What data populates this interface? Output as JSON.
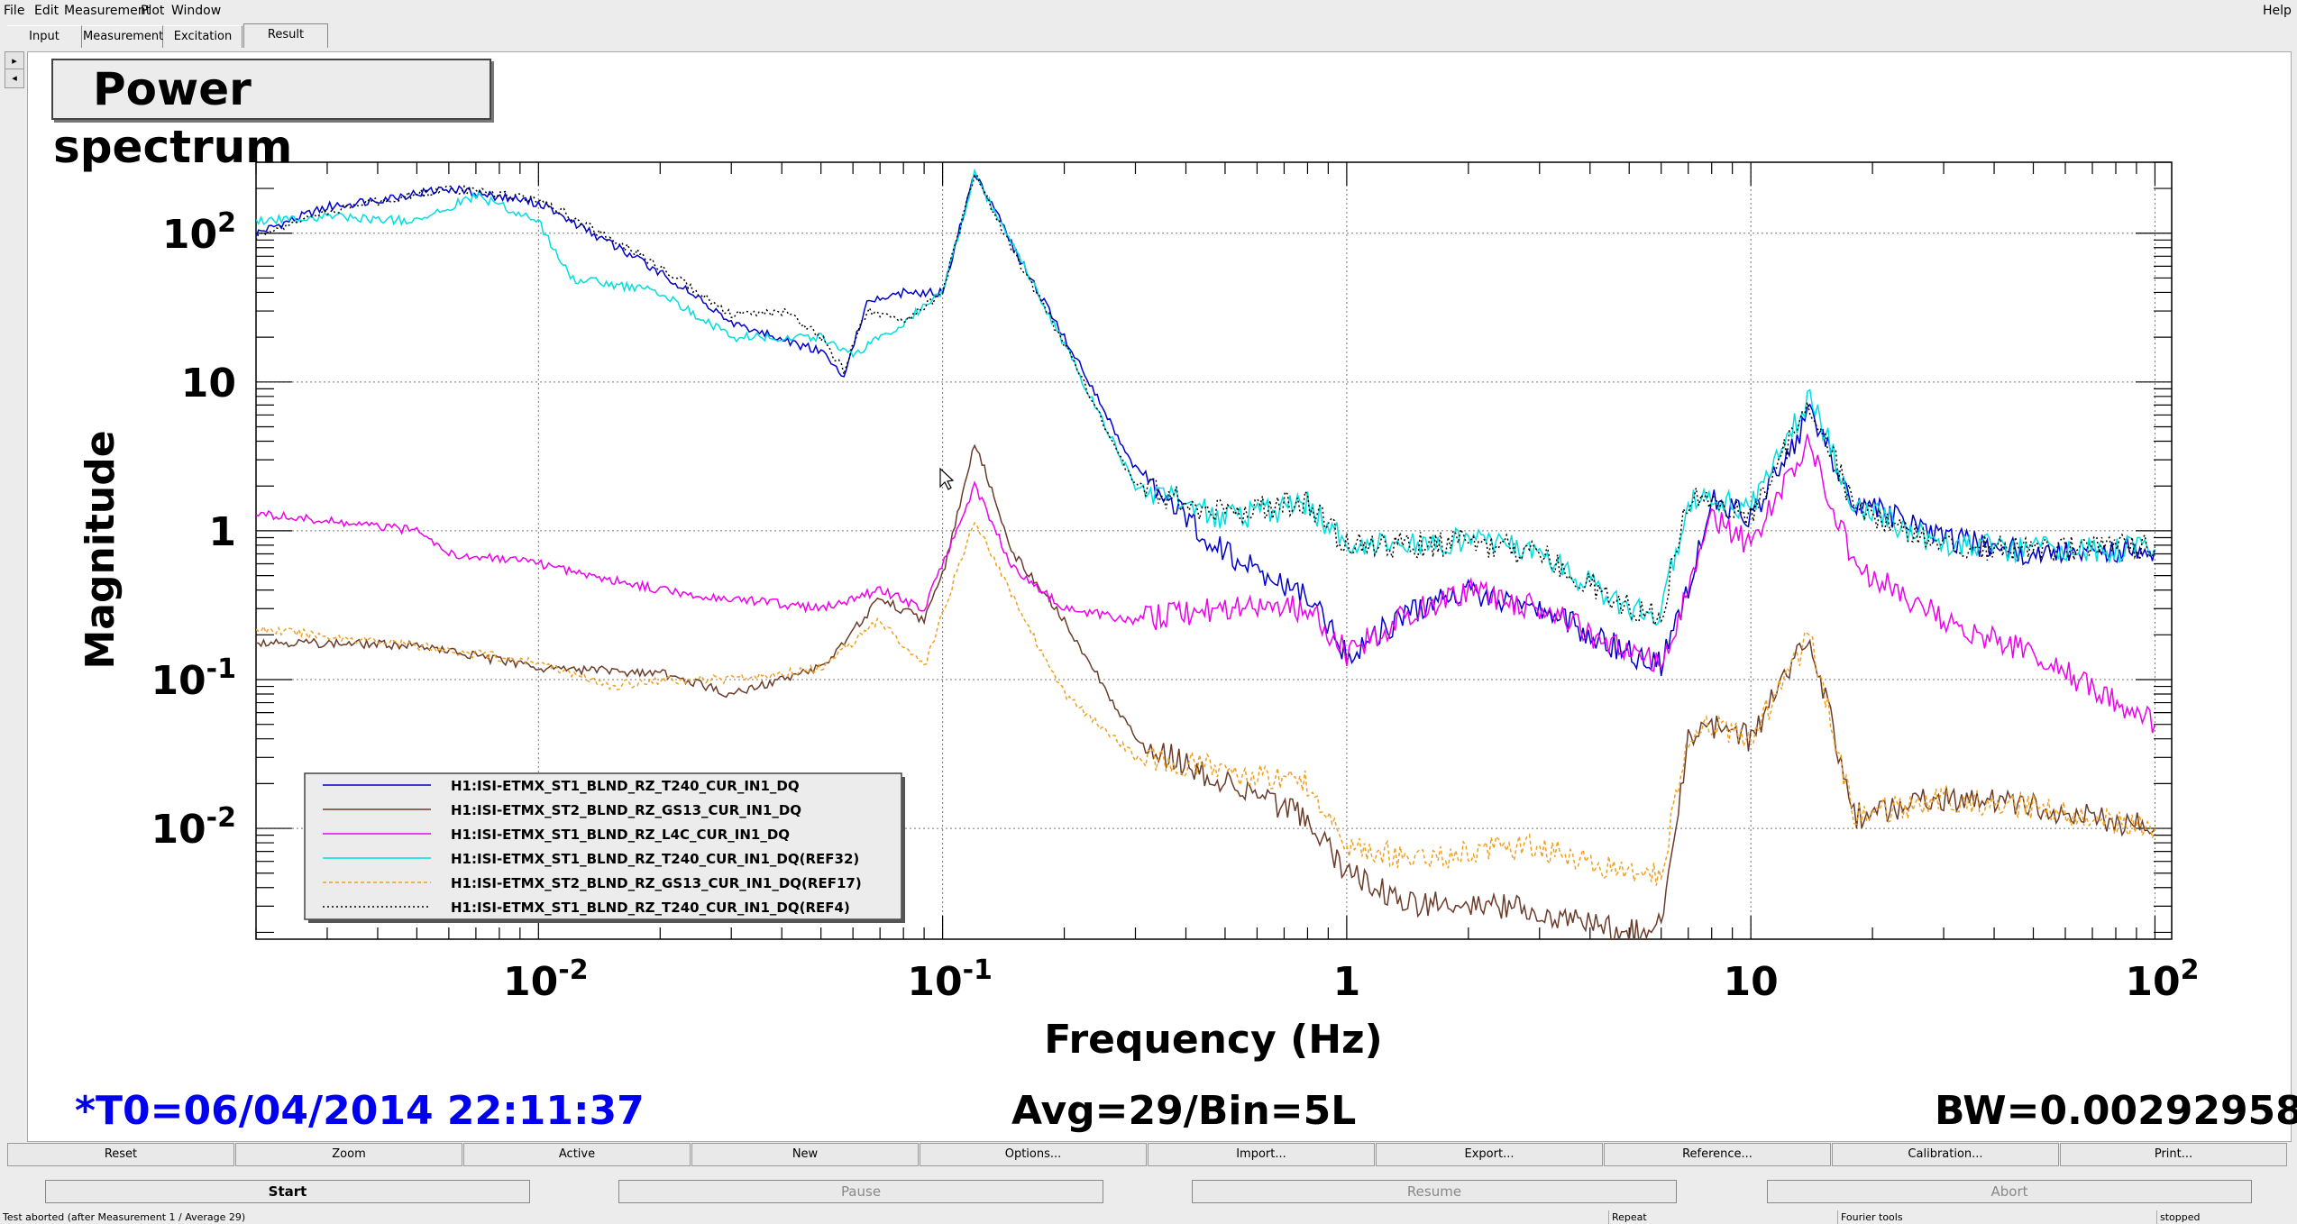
{
  "menu": {
    "file": "File",
    "edit": "Edit",
    "measurement": "Measurement",
    "plot": "Plot",
    "window": "Window",
    "help": "Help"
  },
  "tabs": [
    "Input",
    "Measurement",
    "Excitation",
    "Result"
  ],
  "active_tab": "Result",
  "plot_title": "Power spectrum",
  "footer": {
    "t0": "*T0=06/04/2014 22:11:37",
    "avg": "Avg=29/Bin=5L",
    "bw": "BW=0.00292958"
  },
  "toolbar": [
    "Reset",
    "Zoom",
    "Active",
    "New",
    "Options...",
    "Import...",
    "Export...",
    "Reference...",
    "Calibration...",
    "Print..."
  ],
  "controls": [
    "Start",
    "Pause",
    "Resume",
    "Abort"
  ],
  "status": {
    "message": "Test aborted (after Measurement 1 / Average 29)",
    "mode": "Repeat",
    "tools": "Fourier tools",
    "state": "stopped"
  },
  "colors": {
    "title_blue": "#0000ee",
    "T240": "#0000cc",
    "GS13": "#6b3c2a",
    "L4C": "#ee00ee",
    "T240_ref": "#00dede",
    "GS13_ref": "#f0a020",
    "T240_ref4": "#000000"
  },
  "chart_data": {
    "type": "line",
    "xlabel": "Frequency (Hz)",
    "ylabel": "Magnitude",
    "xscale": "log",
    "yscale": "log",
    "xlim": [
      0.002,
      110
    ],
    "ylim": [
      0.0018,
      300
    ],
    "x_ticks": [
      "10-2",
      "10-1",
      "1",
      "10",
      "102"
    ],
    "y_ticks": [
      "102",
      "10",
      "1",
      "10-1",
      "10-2"
    ],
    "grid": true,
    "legend_position": "bottom-left",
    "series": [
      {
        "name": "H1:ISI-ETMX_ST1_BLND_RZ_T240_CUR_IN1_DQ",
        "style": "solid",
        "color": "#0000cc",
        "x": [
          0.002,
          0.003,
          0.006,
          0.01,
          0.02,
          0.03,
          0.05,
          0.057,
          0.065,
          0.08,
          0.1,
          0.12,
          0.15,
          0.2,
          0.3,
          0.5,
          0.8,
          1,
          1.5,
          2,
          3,
          5,
          6,
          7,
          8,
          10,
          14,
          18,
          30,
          50,
          100
        ],
        "y": [
          100,
          150,
          200,
          160,
          55,
          25,
          16,
          11,
          35,
          40,
          40,
          260,
          80,
          20,
          2.6,
          0.7,
          0.36,
          0.15,
          0.3,
          0.4,
          0.3,
          0.15,
          0.13,
          0.4,
          1.6,
          1.2,
          6,
          1.6,
          0.9,
          0.7,
          0.75
        ]
      },
      {
        "name": "H1:ISI-ETMX_ST2_BLND_RZ_GS13_CUR_IN1_DQ",
        "style": "solid",
        "color": "#6b3c2a",
        "x": [
          0.002,
          0.005,
          0.01,
          0.02,
          0.03,
          0.05,
          0.07,
          0.09,
          0.1,
          0.12,
          0.15,
          0.2,
          0.3,
          0.5,
          0.8,
          1,
          1.5,
          2,
          3,
          5,
          6,
          7,
          8,
          10,
          14,
          18,
          30,
          50,
          100
        ],
        "y": [
          0.18,
          0.17,
          0.12,
          0.11,
          0.08,
          0.12,
          0.35,
          0.25,
          0.5,
          4,
          0.7,
          0.25,
          0.04,
          0.02,
          0.012,
          0.005,
          0.003,
          0.0032,
          0.0028,
          0.002,
          0.0022,
          0.04,
          0.05,
          0.04,
          0.2,
          0.012,
          0.016,
          0.014,
          0.01
        ]
      },
      {
        "name": "H1:ISI-ETMX_ST1_BLND_RZ_L4C_CUR_IN1_DQ",
        "style": "solid",
        "color": "#ee00ee",
        "x": [
          0.002,
          0.005,
          0.006,
          0.01,
          0.02,
          0.03,
          0.05,
          0.07,
          0.09,
          0.12,
          0.15,
          0.2,
          0.3,
          0.5,
          0.8,
          1,
          1.5,
          2,
          3,
          5,
          6,
          7,
          8,
          10,
          14,
          18,
          30,
          50,
          100
        ],
        "y": [
          1.3,
          1,
          0.7,
          0.6,
          0.4,
          0.35,
          0.3,
          0.4,
          0.3,
          2,
          0.55,
          0.3,
          0.25,
          0.3,
          0.3,
          0.15,
          0.3,
          0.4,
          0.3,
          0.15,
          0.13,
          0.4,
          1.2,
          0.8,
          4,
          0.6,
          0.25,
          0.15,
          0.05
        ]
      },
      {
        "name": "H1:ISI-ETMX_ST1_BLND_RZ_T240_CUR_IN1_DQ(REF32)",
        "style": "solid",
        "color": "#00dede",
        "x": [
          0.002,
          0.003,
          0.005,
          0.007,
          0.01,
          0.012,
          0.02,
          0.03,
          0.05,
          0.06,
          0.08,
          0.1,
          0.12,
          0.15,
          0.2,
          0.3,
          0.5,
          0.8,
          1,
          1.5,
          2,
          3,
          5,
          6,
          7,
          8,
          10,
          14,
          18,
          30,
          50,
          100
        ],
        "y": [
          120,
          130,
          120,
          180,
          120,
          50,
          40,
          20,
          20,
          15,
          25,
          40,
          250,
          80,
          18,
          2,
          1.2,
          1.5,
          0.8,
          0.8,
          0.9,
          0.7,
          0.3,
          0.28,
          1.6,
          1.6,
          1.4,
          8,
          1.5,
          0.8,
          0.75,
          0.75
        ]
      },
      {
        "name": "H1:ISI-ETMX_ST2_BLND_RZ_GS13_CUR_IN1_DQ(REF17)",
        "style": "dashed",
        "color": "#f0a020",
        "x": [
          0.002,
          0.005,
          0.01,
          0.015,
          0.02,
          0.03,
          0.05,
          0.07,
          0.09,
          0.12,
          0.15,
          0.2,
          0.3,
          0.5,
          0.8,
          1,
          1.5,
          2,
          3,
          5,
          6,
          7,
          8,
          10,
          14,
          18,
          30,
          50,
          100
        ],
        "y": [
          0.22,
          0.17,
          0.13,
          0.09,
          0.1,
          0.1,
          0.12,
          0.25,
          0.12,
          1.2,
          0.35,
          0.08,
          0.03,
          0.025,
          0.02,
          0.008,
          0.006,
          0.007,
          0.0075,
          0.005,
          0.005,
          0.04,
          0.05,
          0.04,
          0.2,
          0.012,
          0.016,
          0.014,
          0.01
        ]
      },
      {
        "name": "H1:ISI-ETMX_ST1_BLND_RZ_T240_CUR_IN1_DQ(REF4)",
        "style": "dotted",
        "color": "#000000",
        "x": [
          0.002,
          0.003,
          0.006,
          0.01,
          0.02,
          0.03,
          0.04,
          0.05,
          0.057,
          0.065,
          0.08,
          0.1,
          0.12,
          0.15,
          0.2,
          0.3,
          0.5,
          0.8,
          1,
          1.5,
          2,
          3,
          5,
          6,
          7,
          8,
          10,
          14,
          18,
          30,
          50,
          100
        ],
        "y": [
          95,
          140,
          200,
          170,
          60,
          28,
          30,
          20,
          12,
          30,
          25,
          40,
          250,
          75,
          18,
          2,
          1.3,
          1.6,
          0.8,
          0.8,
          0.85,
          0.7,
          0.3,
          0.28,
          1.6,
          1.6,
          1.3,
          7,
          1.5,
          0.8,
          0.75,
          0.78
        ]
      }
    ]
  }
}
